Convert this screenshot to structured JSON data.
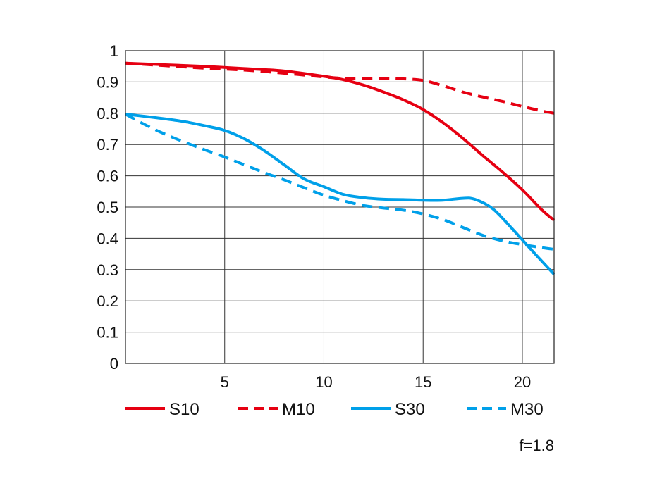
{
  "chart_data": {
    "type": "line",
    "title": "",
    "xlabel": "",
    "ylabel": "",
    "xlim": [
      0,
      21.6
    ],
    "ylim": [
      0,
      1
    ],
    "x_ticks": [
      5,
      10,
      15,
      20
    ],
    "x_tick_labels": [
      "5",
      "10",
      "15",
      "20"
    ],
    "y_ticks": [
      0,
      0.1,
      0.2,
      0.3,
      0.4,
      0.5,
      0.6,
      0.7,
      0.8,
      0.9,
      1
    ],
    "y_tick_labels": [
      "0",
      "0.1",
      "0.2",
      "0.3",
      "0.4",
      "0.5",
      "0.6",
      "0.7",
      "0.8",
      "0.9",
      "1"
    ],
    "grid": true,
    "legend_position": "bottom",
    "annotation": "f=1.8",
    "series": [
      {
        "name": "S10",
        "color": "#e60012",
        "dash": "solid",
        "points": [
          [
            0,
            0.96
          ],
          [
            2,
            0.955
          ],
          [
            4,
            0.95
          ],
          [
            6,
            0.943
          ],
          [
            8,
            0.935
          ],
          [
            10,
            0.918
          ],
          [
            11,
            0.907
          ],
          [
            12,
            0.89
          ],
          [
            13,
            0.868
          ],
          [
            14,
            0.843
          ],
          [
            15,
            0.812
          ],
          [
            16,
            0.77
          ],
          [
            17,
            0.72
          ],
          [
            18,
            0.665
          ],
          [
            19,
            0.612
          ],
          [
            20,
            0.555
          ],
          [
            21,
            0.49
          ],
          [
            21.6,
            0.458
          ]
        ]
      },
      {
        "name": "M10",
        "color": "#e60012",
        "dash": "dashed",
        "points": [
          [
            0,
            0.96
          ],
          [
            2,
            0.952
          ],
          [
            4,
            0.944
          ],
          [
            6,
            0.938
          ],
          [
            8,
            0.928
          ],
          [
            10,
            0.916
          ],
          [
            11,
            0.912
          ],
          [
            12,
            0.912
          ],
          [
            13,
            0.912
          ],
          [
            14,
            0.91
          ],
          [
            15,
            0.905
          ],
          [
            16,
            0.888
          ],
          [
            17,
            0.868
          ],
          [
            18,
            0.852
          ],
          [
            19,
            0.838
          ],
          [
            20,
            0.822
          ],
          [
            21,
            0.807
          ],
          [
            21.6,
            0.8
          ]
        ]
      },
      {
        "name": "S30",
        "color": "#00a0e9",
        "dash": "solid",
        "points": [
          [
            0,
            0.797
          ],
          [
            1,
            0.79
          ],
          [
            2,
            0.782
          ],
          [
            3,
            0.773
          ],
          [
            4,
            0.76
          ],
          [
            5,
            0.745
          ],
          [
            6,
            0.718
          ],
          [
            7,
            0.68
          ],
          [
            8,
            0.635
          ],
          [
            9,
            0.59
          ],
          [
            10,
            0.565
          ],
          [
            11,
            0.54
          ],
          [
            12,
            0.53
          ],
          [
            13,
            0.525
          ],
          [
            14,
            0.524
          ],
          [
            15,
            0.522
          ],
          [
            16,
            0.522
          ],
          [
            17,
            0.528
          ],
          [
            17.6,
            0.525
          ],
          [
            18.5,
            0.495
          ],
          [
            19.5,
            0.43
          ],
          [
            20.5,
            0.36
          ],
          [
            21.6,
            0.285
          ]
        ]
      },
      {
        "name": "M30",
        "color": "#00a0e9",
        "dash": "dashed",
        "points": [
          [
            0,
            0.797
          ],
          [
            1,
            0.763
          ],
          [
            2,
            0.733
          ],
          [
            3,
            0.707
          ],
          [
            4,
            0.683
          ],
          [
            5,
            0.66
          ],
          [
            6,
            0.635
          ],
          [
            7,
            0.61
          ],
          [
            8,
            0.587
          ],
          [
            9,
            0.562
          ],
          [
            10,
            0.538
          ],
          [
            11,
            0.52
          ],
          [
            12,
            0.505
          ],
          [
            13,
            0.497
          ],
          [
            14,
            0.49
          ],
          [
            15,
            0.478
          ],
          [
            16,
            0.46
          ],
          [
            17,
            0.435
          ],
          [
            18,
            0.41
          ],
          [
            19,
            0.392
          ],
          [
            20,
            0.38
          ],
          [
            21,
            0.37
          ],
          [
            21.6,
            0.365
          ]
        ]
      }
    ]
  }
}
